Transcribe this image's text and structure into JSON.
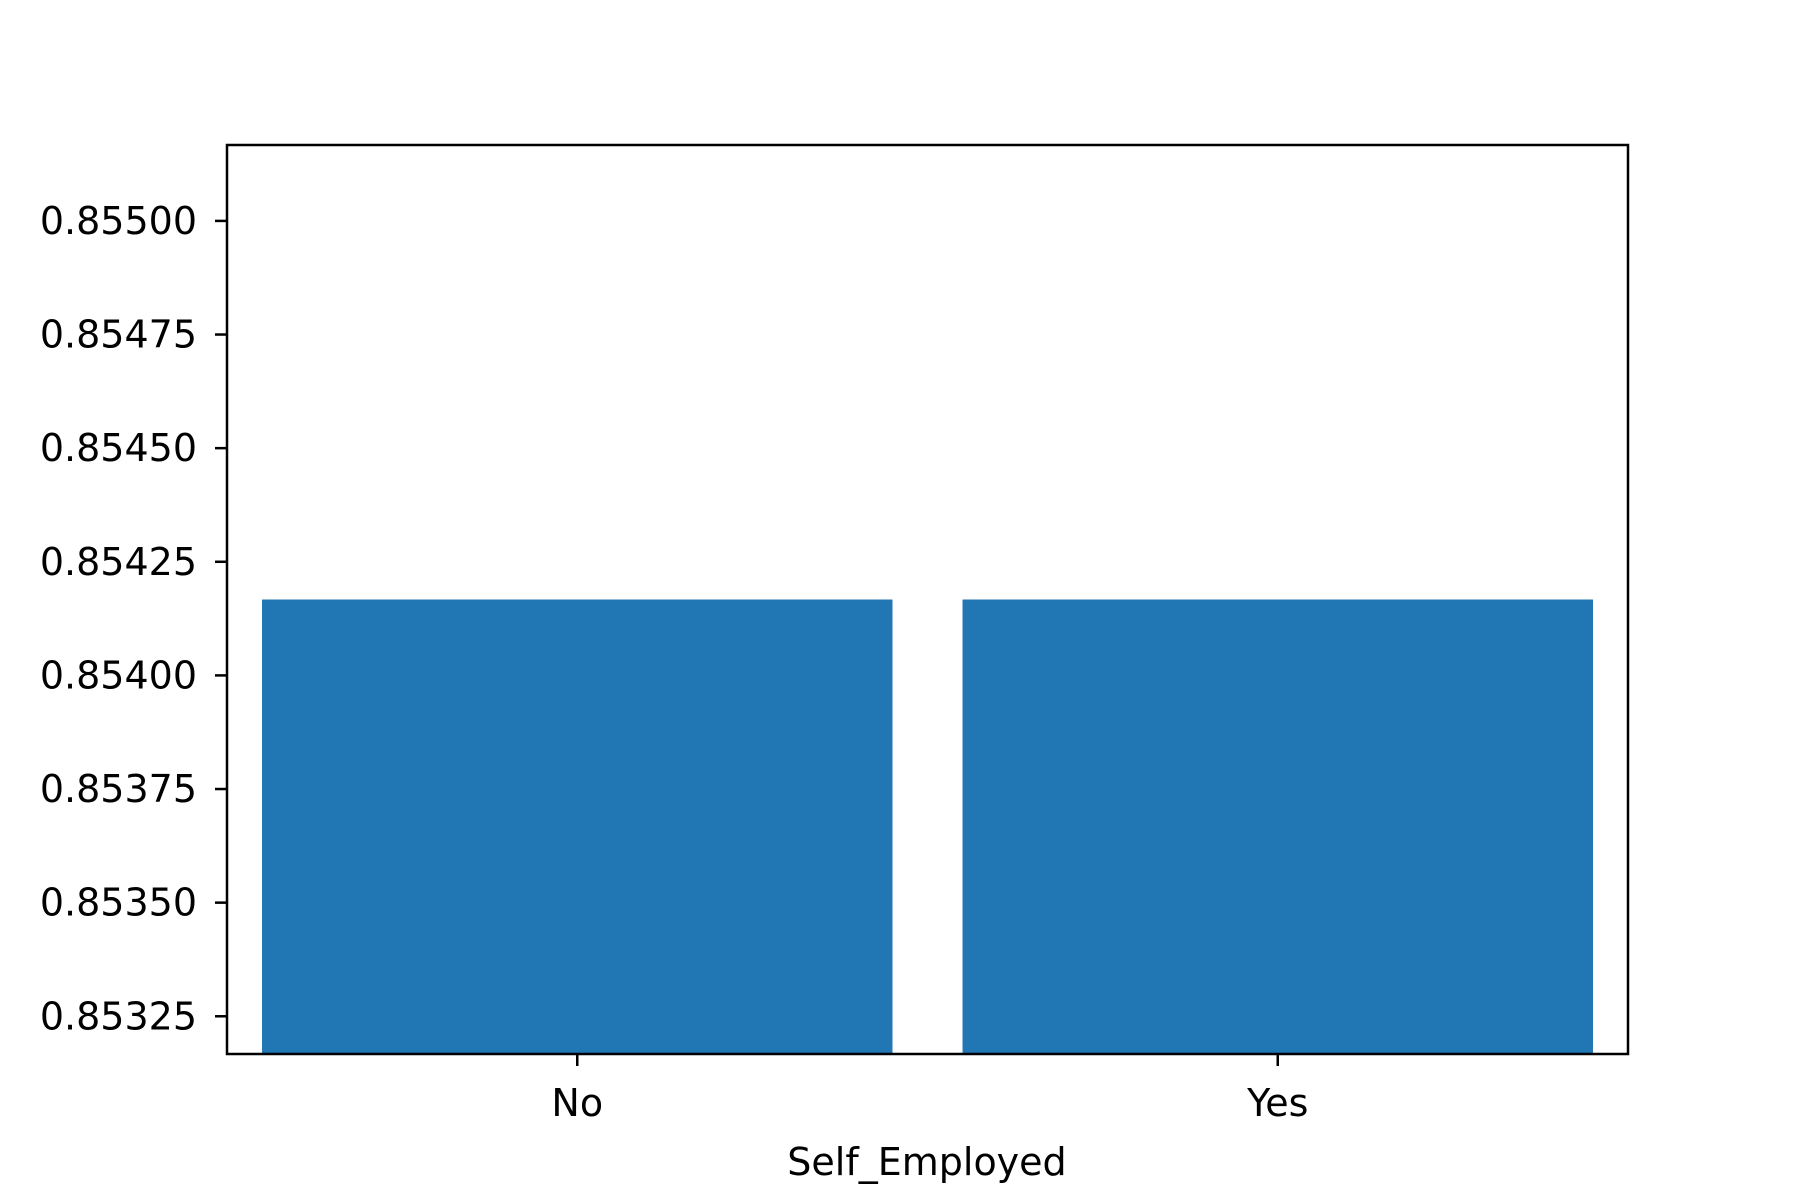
{
  "chart_data": {
    "type": "bar",
    "categories": [
      "No",
      "Yes"
    ],
    "values": [
      0.854167,
      0.854167
    ],
    "title": "",
    "xlabel": "Self_Employed",
    "ylabel": "",
    "ylim": [
      0.853167,
      0.855167
    ],
    "yticks": [
      0.85325,
      0.8535,
      0.85375,
      0.854,
      0.85425,
      0.8545,
      0.85475,
      0.855
    ],
    "ytick_labels": [
      "0.85325",
      "0.85350",
      "0.85375",
      "0.85400",
      "0.85425",
      "0.85450",
      "0.85475",
      "0.85500"
    ],
    "grid": false,
    "legend": "none",
    "bar_color": "#2077b4"
  }
}
